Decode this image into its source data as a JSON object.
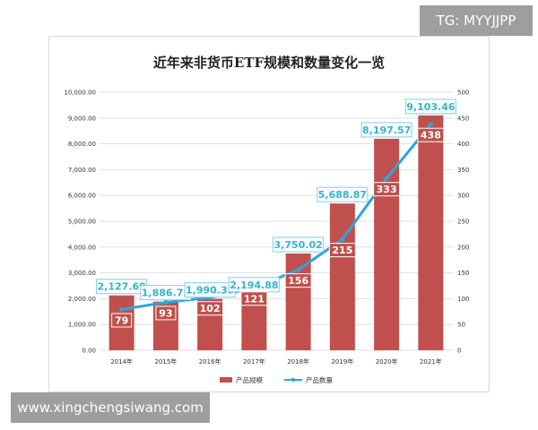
{
  "watermark_top": "TG: MYYJJPP",
  "watermark_bottom": "www.xingchengsiwang.com",
  "colors": {
    "bar": "#c0504d",
    "line": "#2ea6d6",
    "label_text": "#34b3cf"
  },
  "chart_data": {
    "type": "bar",
    "title": "近年来非货币ETF规模和数量变化一览",
    "categories": [
      "2014年",
      "2015年",
      "2016年",
      "2017年",
      "2018年",
      "2019年",
      "2020年",
      "2021年"
    ],
    "series": [
      {
        "name": "产品规模",
        "type": "bar",
        "axis": "left",
        "values": [
          2127.69,
          1886.75,
          1990.33,
          2194.88,
          3750.02,
          5688.87,
          8197.57,
          9103.46
        ],
        "labels": [
          "2,127.69",
          "1,886.75",
          "1,990.33",
          "2,194.88",
          "3,750.02",
          "5,688.87",
          "8,197.57",
          "9,103.46"
        ]
      },
      {
        "name": "产品数量",
        "type": "line",
        "axis": "right",
        "values": [
          79,
          93,
          102,
          121,
          156,
          215,
          333,
          438
        ],
        "labels": [
          "79",
          "93",
          "102",
          "121",
          "156",
          "215",
          "333",
          "438"
        ]
      }
    ],
    "left_axis": {
      "ylim": [
        0,
        10000
      ],
      "ticks": [
        "0.00",
        "1,000.00",
        "2,000.00",
        "3,000.00",
        "4,000.00",
        "5,000.00",
        "6,000.00",
        "7,000.00",
        "8,000.00",
        "9,000.00",
        "10,000.00"
      ]
    },
    "right_axis": {
      "ylim": [
        0,
        500
      ],
      "ticks": [
        "0",
        "50",
        "100",
        "150",
        "200",
        "250",
        "300",
        "350",
        "400",
        "450",
        "500"
      ]
    },
    "grid": true,
    "legend_position": "bottom"
  }
}
